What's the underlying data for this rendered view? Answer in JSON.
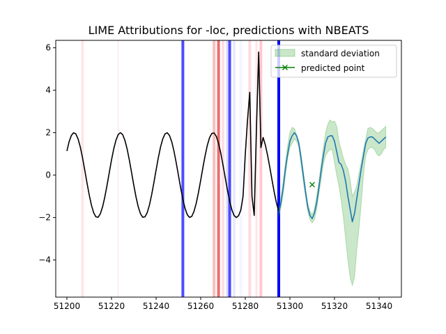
{
  "chart_data": {
    "type": "line",
    "title": "LIME Attributions for -loc, predictions with NBEATS",
    "xlabel": "",
    "ylabel": "",
    "xlim": [
      51195,
      51350
    ],
    "ylim": [
      -5.75,
      6.35
    ],
    "xticks": [
      51200,
      51220,
      51240,
      51260,
      51280,
      51300,
      51320,
      51340
    ],
    "yticks": [
      -4,
      -2,
      0,
      2,
      4,
      6
    ],
    "ytick_labels": [
      "−4",
      "−2",
      "0",
      "2",
      "4",
      "6"
    ],
    "legend": {
      "position": "top-right",
      "entries": [
        {
          "label": "standard deviation",
          "color": "#2ca02c",
          "kind": "patch"
        },
        {
          "label": "predicted point",
          "color": "#008000",
          "kind": "line-x"
        }
      ]
    },
    "history": {
      "color": "#000000",
      "base": {
        "x_start": 51200,
        "x_end": 51295,
        "amplitude": 2,
        "period": 20.8,
        "phase_x": 51198
      },
      "spikes": [
        {
          "x": 51279,
          "y": -1.0
        },
        {
          "x": 51280,
          "y": 1.0
        },
        {
          "x": 51281,
          "y": 2.6
        },
        {
          "x": 51282,
          "y": 3.9
        },
        {
          "x": 51283,
          "y": -1.0
        },
        {
          "x": 51284,
          "y": -1.9
        },
        {
          "x": 51285,
          "y": 2.2
        },
        {
          "x": 51286,
          "y": 5.8
        },
        {
          "x": 51287,
          "y": 1.3
        }
      ]
    },
    "forecast": {
      "color": "#1f77b4",
      "x": [
        51295,
        51296,
        51297,
        51298,
        51299,
        51300,
        51301,
        51302,
        51303,
        51304,
        51305,
        51306,
        51307,
        51308,
        51309,
        51310,
        51311,
        51312,
        51313,
        51314,
        51315,
        51316,
        51317,
        51318,
        51319,
        51320,
        51321,
        51322,
        51323,
        51324,
        51325,
        51326,
        51327,
        51328,
        51329,
        51330,
        51331,
        51332,
        51333,
        51334,
        51335,
        51336,
        51337,
        51338,
        51339,
        51340,
        51341,
        51342,
        51343
      ],
      "y": [
        -1.8,
        -1.3,
        -0.6,
        0.3,
        1.0,
        1.6,
        1.85,
        2.0,
        1.85,
        1.5,
        0.8,
        0.0,
        -0.8,
        -1.5,
        -1.9,
        -2.05,
        -1.8,
        -1.3,
        -0.6,
        0.2,
        0.9,
        1.5,
        1.8,
        1.85,
        1.85,
        1.6,
        1.1,
        0.6,
        0.5,
        0.2,
        -0.3,
        -1.0,
        -1.6,
        -2.2,
        -1.8,
        -1.1,
        -0.4,
        0.3,
        0.9,
        1.5,
        1.75,
        1.8,
        1.8,
        1.7,
        1.6,
        1.5,
        1.6,
        1.7,
        1.8
      ],
      "upper": [
        -1.6,
        -1.0,
        -0.3,
        0.6,
        1.4,
        2.0,
        2.25,
        2.2,
        1.9,
        1.6,
        1.0,
        0.2,
        -0.6,
        -1.3,
        -1.7,
        -1.85,
        -1.6,
        -1.0,
        -0.3,
        0.5,
        1.3,
        2.0,
        2.4,
        2.6,
        2.5,
        2.55,
        2.3,
        1.6,
        1.2,
        0.8,
        0.5,
        0.3,
        -0.2,
        -1.0,
        -0.8,
        -0.5,
        0.1,
        0.6,
        1.2,
        1.7,
        2.2,
        2.25,
        2.2,
        2.1,
        2.0,
        2.0,
        2.1,
        2.2,
        2.3
      ],
      "lower": [
        -2.0,
        -1.5,
        -0.9,
        0.0,
        0.8,
        1.3,
        1.5,
        1.7,
        1.6,
        1.3,
        0.5,
        -0.3,
        -1.0,
        -1.7,
        -2.1,
        -2.25,
        -2.1,
        -1.6,
        -0.9,
        -0.2,
        0.5,
        0.9,
        1.1,
        1.2,
        1.2,
        0.6,
        0.0,
        -0.5,
        -1.2,
        -2.0,
        -3.0,
        -4.0,
        -4.8,
        -5.2,
        -4.8,
        -3.5,
        -2.5,
        -1.3,
        0.0,
        0.9,
        1.2,
        1.3,
        1.3,
        1.2,
        1.0,
        0.9,
        1.0,
        1.2,
        1.3
      ]
    },
    "predicted_point": {
      "x": 51310,
      "y": -0.45,
      "color": "#008000"
    },
    "attribution_lines": [
      {
        "x": 51207,
        "color": "#ffb6c1",
        "alpha": 0.35,
        "width": 4
      },
      {
        "x": 51223,
        "color": "#ffb6c1",
        "alpha": 0.25,
        "width": 2
      },
      {
        "x": 51252,
        "color": "#0000ff",
        "alpha": 0.7,
        "width": 4
      },
      {
        "x": 51266,
        "color": "#f08080",
        "alpha": 0.5,
        "width": 4
      },
      {
        "x": 51268,
        "color": "#e03030",
        "alpha": 0.7,
        "width": 4
      },
      {
        "x": 51270,
        "color": "#ffc0cb",
        "alpha": 0.5,
        "width": 4
      },
      {
        "x": 51272,
        "color": "#b0b0ff",
        "alpha": 0.45,
        "width": 4
      },
      {
        "x": 51273,
        "color": "#0000ff",
        "alpha": 0.7,
        "width": 4
      },
      {
        "x": 51275,
        "color": "#c8c8ff",
        "alpha": 0.4,
        "width": 4
      },
      {
        "x": 51278,
        "color": "#e8e8ff",
        "alpha": 0.4,
        "width": 4
      },
      {
        "x": 51282,
        "color": "#ffb6c1",
        "alpha": 0.5,
        "width": 4
      },
      {
        "x": 51285,
        "color": "#ffc0cb",
        "alpha": 0.4,
        "width": 3
      },
      {
        "x": 51287,
        "color": "#ff9aa8",
        "alpha": 0.55,
        "width": 4
      },
      {
        "x": 51295,
        "color": "#0000ff",
        "alpha": 1.0,
        "width": 4
      }
    ]
  }
}
